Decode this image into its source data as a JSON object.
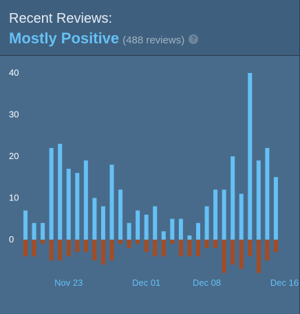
{
  "header": {
    "heading": "Recent Reviews:",
    "summary": "Mostly Positive",
    "count": "(488 reviews)",
    "help_glyph": "?"
  },
  "colors": {
    "positive": "#66c0f4",
    "negative": "#a34c25",
    "background": "#486b8c",
    "header_bg": "#3f5f7e"
  },
  "chart_data": {
    "type": "bar",
    "ylim": [
      -10,
      40
    ],
    "yticks": [
      0,
      10,
      20,
      30,
      40
    ],
    "x_tick_labels": [
      "Nov 23",
      "Dec 01",
      "Dec 08",
      "Dec 16"
    ],
    "x_tick_indices": [
      5,
      14,
      21,
      30
    ],
    "grid": false,
    "series": [
      {
        "values": [
          7,
          4,
          4,
          22,
          23,
          17,
          16,
          19,
          10,
          8,
          18,
          12,
          4,
          7,
          6,
          8,
          2,
          5,
          5,
          1,
          4,
          8,
          12,
          12,
          20,
          11,
          40,
          19,
          22,
          15
        ]
      },
      {
        "values": [
          -4,
          -4,
          -1,
          -5,
          -5,
          -4,
          -3,
          -3,
          -5,
          -6,
          -5,
          -1,
          -2,
          -1,
          -3,
          -4,
          -4,
          -1,
          -4,
          -4,
          -4,
          -2,
          -2,
          -8,
          -6,
          -7,
          -4,
          -8,
          -5,
          -3
        ]
      }
    ]
  }
}
